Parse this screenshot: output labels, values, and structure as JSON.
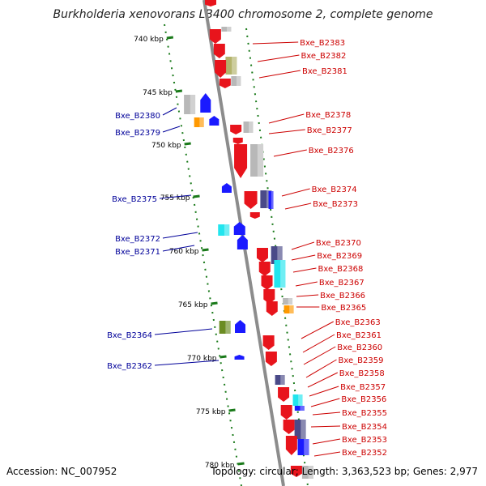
{
  "title": "Burkholderia xenovorans LB400 chromosome 2, complete genome",
  "footer": {
    "accession": "Accession: NC_007952",
    "info": "Topology: circular; Length: 3,363,523 bp; Genes: 2,977"
  },
  "colors": {
    "forward_label": "#cc0000",
    "reverse_label": "#000099",
    "tick": "#1a7a1a",
    "backbone": "#8c8c8c",
    "red_gene": "#e8141c",
    "blue_gene": "#1a1aff",
    "grey_feature": "#b8b8b8",
    "olive_feature": "#b3b36b",
    "orange_feature": "#ff9900",
    "cyan_feature": "#22e5ee",
    "navy_feature": "#4a4a88",
    "green_feature": "#6b8c22"
  },
  "scale": {
    "unit": "kbp",
    "ticks": [
      {
        "label": "740 kbp"
      },
      {
        "label": "745 kbp"
      },
      {
        "label": "750 kbp"
      },
      {
        "label": "755 kbp"
      },
      {
        "label": "760 kbp"
      },
      {
        "label": "765 kbp"
      },
      {
        "label": "770 kbp"
      },
      {
        "label": "775 kbp"
      },
      {
        "label": "780 kbp"
      }
    ]
  },
  "forward_genes": [
    "Bxe_B2383",
    "Bxe_B2382",
    "Bxe_B2381",
    "Bxe_B2378",
    "Bxe_B2377",
    "Bxe_B2376",
    "Bxe_B2374",
    "Bxe_B2373",
    "Bxe_B2370",
    "Bxe_B2369",
    "Bxe_B2368",
    "Bxe_B2367",
    "Bxe_B2366",
    "Bxe_B2365",
    "Bxe_B2363",
    "Bxe_B2361",
    "Bxe_B2360",
    "Bxe_B2359",
    "Bxe_B2358",
    "Bxe_B2357",
    "Bxe_B2356",
    "Bxe_B2355",
    "Bxe_B2354",
    "Bxe_B2353",
    "Bxe_B2352"
  ],
  "reverse_genes": [
    "Bxe_B2380",
    "Bxe_B2379",
    "Bxe_B2375",
    "Bxe_B2372",
    "Bxe_B2371",
    "Bxe_B2364",
    "Bxe_B2362"
  ]
}
